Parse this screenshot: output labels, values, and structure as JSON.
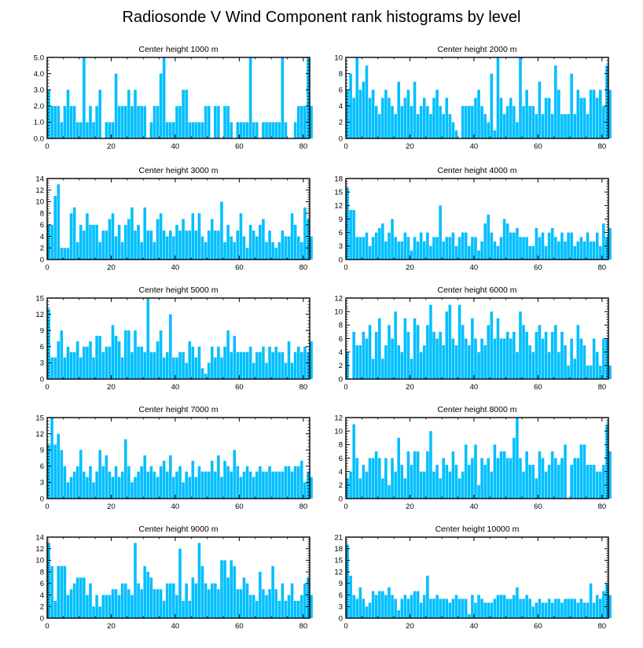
{
  "figure_title": "Radiosonde V Wind Component rank histograms by level",
  "colors": {
    "bar": "#00BFFF",
    "axis": "#000000",
    "background": "#ffffff"
  },
  "chart_data": [
    {
      "type": "bar",
      "title": "Center height 1000 m",
      "xlabel": "",
      "ylabel": "",
      "xlim": [
        0,
        82
      ],
      "xticks": [
        0,
        20,
        40,
        60,
        80
      ],
      "ylim": [
        0,
        5
      ],
      "yticks": [
        0,
        1,
        2,
        3,
        4,
        5
      ],
      "ytick_labels": [
        "0.0",
        "1.0",
        "2.0",
        "3.0",
        "4.0",
        "5.0"
      ],
      "values": [
        3,
        2,
        2,
        2,
        1,
        2,
        3,
        2,
        2,
        1,
        1,
        5,
        1,
        2,
        1,
        2,
        3,
        0,
        1,
        1,
        1,
        4,
        2,
        2,
        2,
        3,
        2,
        3,
        2,
        2,
        2,
        0,
        1,
        2,
        2,
        4,
        5,
        1,
        1,
        1,
        2,
        2,
        3,
        3,
        1,
        1,
        1,
        1,
        1,
        2,
        2,
        0,
        2,
        2,
        0,
        2,
        2,
        1,
        0,
        1,
        1,
        1,
        1,
        5,
        1,
        1,
        0,
        1,
        1,
        1,
        1,
        1,
        1,
        5,
        1,
        0,
        0,
        1,
        2,
        2,
        2,
        5,
        2
      ]
    },
    {
      "type": "bar",
      "title": "Center height 2000 m",
      "xlabel": "",
      "ylabel": "",
      "xlim": [
        0,
        82
      ],
      "xticks": [
        0,
        20,
        40,
        60,
        80
      ],
      "ylim": [
        0,
        10
      ],
      "yticks": [
        0,
        2,
        4,
        6,
        8,
        10
      ],
      "ytick_labels": [
        "0",
        "2",
        "4",
        "6",
        "8",
        "10"
      ],
      "values": [
        6,
        8,
        5,
        10,
        6,
        7,
        9,
        5,
        6,
        4,
        3,
        5,
        6,
        5,
        4,
        3,
        7,
        4,
        5,
        6,
        4,
        7,
        3,
        4,
        5,
        4,
        3,
        5,
        6,
        4,
        3,
        5,
        3,
        2,
        1,
        0,
        4,
        4,
        4,
        4,
        5,
        6,
        4,
        3,
        2,
        8,
        1,
        10,
        5,
        3,
        4,
        5,
        4,
        2,
        10,
        4,
        6,
        4,
        4,
        3,
        7,
        3,
        5,
        5,
        3,
        9,
        6,
        3,
        3,
        3,
        8,
        3,
        6,
        5,
        5,
        3,
        6,
        6,
        5,
        6,
        4,
        9,
        6
      ]
    },
    {
      "type": "bar",
      "title": "Center height 3000 m",
      "xlabel": "",
      "ylabel": "",
      "xlim": [
        0,
        82
      ],
      "xticks": [
        0,
        20,
        40,
        60,
        80
      ],
      "ylim": [
        0,
        14
      ],
      "yticks": [
        0,
        2,
        4,
        6,
        8,
        10,
        12,
        14
      ],
      "ytick_labels": [
        "0",
        "2",
        "4",
        "6",
        "8",
        "10",
        "12",
        "14"
      ],
      "values": [
        6,
        6,
        11,
        13,
        2,
        2,
        2,
        8,
        9,
        3,
        6,
        5,
        8,
        6,
        6,
        6,
        3,
        5,
        5,
        7,
        8,
        4,
        6,
        3,
        6,
        7,
        9,
        5,
        6,
        3,
        9,
        5,
        5,
        3,
        7,
        8,
        5,
        4,
        5,
        4,
        6,
        5,
        7,
        5,
        5,
        8,
        5,
        8,
        4,
        3,
        5,
        7,
        5,
        5,
        10,
        3,
        6,
        4,
        3,
        5,
        8,
        4,
        2,
        6,
        5,
        4,
        6,
        7,
        3,
        5,
        3,
        2,
        3,
        5,
        4,
        4,
        8,
        6,
        4,
        3,
        9,
        7,
        4
      ]
    },
    {
      "type": "bar",
      "title": "Center height 4000 m",
      "xlabel": "",
      "ylabel": "",
      "xlim": [
        0,
        82
      ],
      "xticks": [
        0,
        20,
        40,
        60,
        80
      ],
      "ylim": [
        0,
        18
      ],
      "yticks": [
        0,
        3,
        6,
        9,
        12,
        15,
        18
      ],
      "ytick_labels": [
        "0",
        "3",
        "6",
        "9",
        "12",
        "15",
        "18"
      ],
      "values": [
        16,
        11,
        11,
        5,
        5,
        5,
        6,
        3,
        5,
        6,
        7,
        8,
        4,
        6,
        9,
        5,
        4,
        4,
        6,
        5,
        2,
        5,
        4,
        6,
        4,
        6,
        3,
        5,
        5,
        12,
        4,
        5,
        5,
        6,
        3,
        5,
        6,
        6,
        3,
        5,
        5,
        2,
        4,
        8,
        10,
        6,
        4,
        3,
        5,
        9,
        8,
        6,
        6,
        7,
        5,
        5,
        5,
        3,
        3,
        7,
        5,
        6,
        3,
        6,
        7,
        5,
        4,
        6,
        4,
        6,
        6,
        3,
        4,
        5,
        4,
        6,
        4,
        4,
        6,
        3,
        8,
        5,
        7
      ]
    },
    {
      "type": "bar",
      "title": "Center height 5000 m",
      "xlabel": "",
      "ylabel": "",
      "xlim": [
        0,
        82
      ],
      "xticks": [
        0,
        20,
        40,
        60,
        80
      ],
      "ylim": [
        0,
        15
      ],
      "yticks": [
        0,
        3,
        6,
        9,
        12,
        15
      ],
      "ytick_labels": [
        "0",
        "3",
        "6",
        "9",
        "12",
        "15"
      ],
      "values": [
        13,
        4,
        4,
        7,
        9,
        4,
        6,
        5,
        5,
        7,
        4,
        6,
        6,
        7,
        4,
        8,
        8,
        5,
        6,
        6,
        10,
        8,
        7,
        4,
        9,
        9,
        5,
        9,
        6,
        6,
        5,
        15,
        5,
        5,
        7,
        9,
        4,
        5,
        12,
        4,
        4,
        5,
        5,
        3,
        7,
        6,
        4,
        6,
        2,
        1,
        3,
        6,
        4,
        6,
        4,
        6,
        9,
        5,
        8,
        5,
        5,
        5,
        5,
        6,
        3,
        5,
        5,
        6,
        3,
        6,
        5,
        6,
        5,
        5,
        3,
        7,
        3,
        5,
        6,
        5,
        6,
        5,
        7
      ]
    },
    {
      "type": "bar",
      "title": "Center height 6000 m",
      "xlabel": "",
      "ylabel": "",
      "xlim": [
        0,
        82
      ],
      "xticks": [
        0,
        20,
        40,
        60,
        80
      ],
      "ylim": [
        0,
        12
      ],
      "yticks": [
        0,
        2,
        4,
        6,
        8,
        10,
        12
      ],
      "ytick_labels": [
        "0",
        "2",
        "4",
        "6",
        "8",
        "10",
        "12"
      ],
      "values": [
        4,
        0,
        7,
        5,
        5,
        7,
        6,
        8,
        3,
        7,
        9,
        3,
        5,
        8,
        6,
        10,
        5,
        4,
        9,
        7,
        3,
        9,
        8,
        4,
        5,
        8,
        11,
        7,
        6,
        7,
        5,
        10,
        11,
        6,
        5,
        11,
        8,
        6,
        5,
        9,
        6,
        4,
        6,
        5,
        8,
        10,
        6,
        9,
        6,
        6,
        7,
        6,
        7,
        4,
        10,
        8,
        7,
        5,
        4,
        7,
        8,
        6,
        7,
        4,
        7,
        8,
        4,
        7,
        5,
        2,
        6,
        3,
        8,
        6,
        5,
        2,
        2,
        6,
        4,
        2,
        6,
        6,
        2
      ]
    },
    {
      "type": "bar",
      "title": "Center height 7000 m",
      "xlabel": "",
      "ylabel": "",
      "xlim": [
        0,
        82
      ],
      "xticks": [
        0,
        20,
        40,
        60,
        80
      ],
      "ylim": [
        0,
        15
      ],
      "yticks": [
        0,
        3,
        6,
        9,
        12,
        15
      ],
      "ytick_labels": [
        "0",
        "3",
        "6",
        "9",
        "12",
        "15"
      ],
      "values": [
        10,
        15,
        10,
        12,
        9,
        6,
        3,
        4,
        5,
        6,
        9,
        5,
        4,
        6,
        3,
        5,
        9,
        6,
        8,
        5,
        4,
        6,
        4,
        5,
        11,
        6,
        3,
        4,
        5,
        6,
        8,
        5,
        6,
        5,
        4,
        6,
        7,
        5,
        8,
        4,
        5,
        6,
        3,
        5,
        4,
        7,
        4,
        6,
        5,
        5,
        5,
        7,
        5,
        8,
        4,
        7,
        6,
        5,
        9,
        6,
        4,
        5,
        6,
        5,
        4,
        5,
        6,
        5,
        5,
        6,
        5,
        5,
        5,
        5,
        6,
        6,
        5,
        6,
        6,
        7,
        3,
        5,
        4
      ]
    },
    {
      "type": "bar",
      "title": "Center height 8000 m",
      "xlabel": "",
      "ylabel": "",
      "xlim": [
        0,
        82
      ],
      "xticks": [
        0,
        20,
        40,
        60,
        80
      ],
      "ylim": [
        0,
        12
      ],
      "yticks": [
        0,
        2,
        4,
        6,
        8,
        10,
        12
      ],
      "ytick_labels": [
        "0",
        "2",
        "4",
        "6",
        "8",
        "10",
        "12"
      ],
      "values": [
        3,
        4,
        11,
        6,
        3,
        5,
        4,
        6,
        6,
        7,
        6,
        3,
        6,
        2,
        6,
        4,
        9,
        5,
        3,
        7,
        5,
        7,
        7,
        4,
        4,
        7,
        10,
        4,
        5,
        3,
        6,
        5,
        4,
        7,
        5,
        3,
        4,
        8,
        5,
        6,
        8,
        2,
        6,
        5,
        6,
        4,
        8,
        6,
        7,
        7,
        6,
        6,
        9,
        12,
        6,
        4,
        7,
        5,
        5,
        3,
        7,
        6,
        4,
        5,
        7,
        6,
        5,
        6,
        8,
        0,
        5,
        6,
        6,
        8,
        8,
        5,
        5,
        5,
        4,
        4,
        5,
        11,
        7
      ]
    },
    {
      "type": "bar",
      "title": "Center height 9000 m",
      "xlabel": "",
      "ylabel": "",
      "xlim": [
        0,
        82
      ],
      "xticks": [
        0,
        20,
        40,
        60,
        80
      ],
      "ylim": [
        0,
        14
      ],
      "yticks": [
        0,
        2,
        4,
        6,
        8,
        10,
        12,
        14
      ],
      "ytick_labels": [
        "0",
        "2",
        "4",
        "6",
        "8",
        "10",
        "12",
        "14"
      ],
      "values": [
        13,
        9,
        3,
        9,
        9,
        9,
        4,
        5,
        6,
        7,
        7,
        7,
        4,
        6,
        2,
        4,
        2,
        4,
        4,
        4,
        5,
        5,
        4,
        6,
        6,
        5,
        4,
        13,
        6,
        5,
        9,
        8,
        7,
        5,
        5,
        5,
        3,
        6,
        6,
        6,
        4,
        12,
        3,
        6,
        3,
        7,
        6,
        13,
        9,
        6,
        5,
        6,
        6,
        5,
        10,
        10,
        7,
        10,
        9,
        5,
        5,
        7,
        6,
        4,
        4,
        3,
        8,
        5,
        4,
        5,
        9,
        5,
        3,
        6,
        3,
        4,
        6,
        3,
        3,
        4,
        6,
        7,
        4
      ]
    },
    {
      "type": "bar",
      "title": "Center height 10000 m",
      "xlabel": "",
      "ylabel": "",
      "xlim": [
        0,
        82
      ],
      "xticks": [
        0,
        20,
        40,
        60,
        80
      ],
      "ylim": [
        0,
        21
      ],
      "yticks": [
        0,
        3,
        6,
        9,
        12,
        15,
        18,
        21
      ],
      "ytick_labels": [
        "0",
        "3",
        "6",
        "9",
        "12",
        "15",
        "18",
        "21"
      ],
      "values": [
        19,
        11,
        6,
        5,
        8,
        5,
        3,
        4,
        7,
        6,
        7,
        7,
        6,
        8,
        6,
        5,
        2,
        5,
        6,
        5,
        6,
        7,
        7,
        4,
        6,
        11,
        5,
        5,
        6,
        5,
        5,
        5,
        4,
        5,
        6,
        5,
        5,
        5,
        1,
        6,
        4,
        6,
        5,
        4,
        4,
        4,
        5,
        6,
        6,
        6,
        5,
        5,
        6,
        8,
        5,
        5,
        6,
        5,
        3,
        4,
        5,
        4,
        4,
        5,
        4,
        5,
        5,
        4,
        5,
        5,
        5,
        5,
        4,
        5,
        4,
        4,
        9,
        4,
        6,
        5,
        7,
        9,
        6
      ]
    }
  ]
}
